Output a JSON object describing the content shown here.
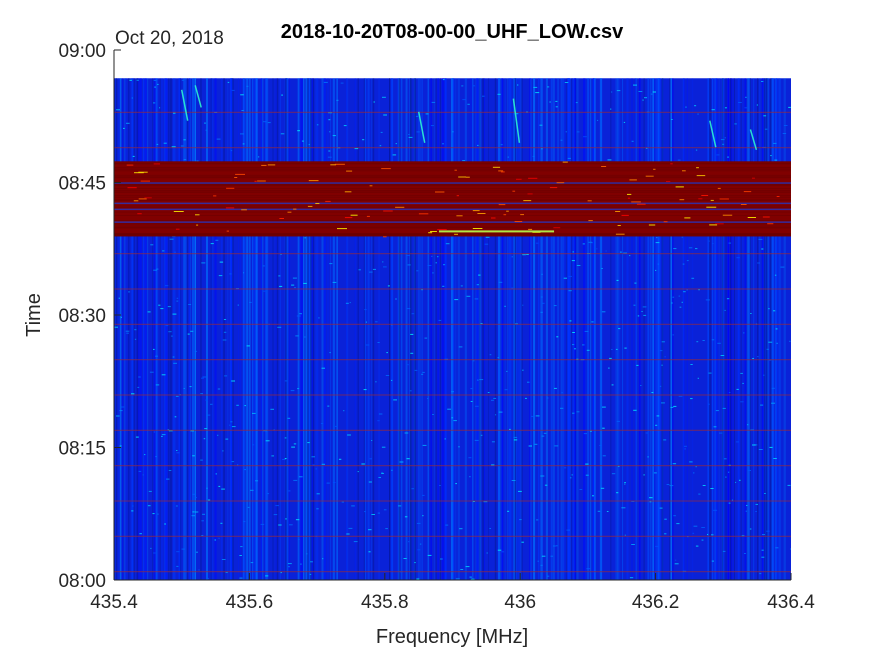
{
  "chart_data": {
    "type": "heatmap",
    "title": "2018-10-20T08-00-00_UHF_LOW.csv",
    "date_label": "Oct 20, 2018",
    "xlabel": "Frequency [MHz]",
    "ylabel": "Time",
    "xlim": [
      435.4,
      436.4
    ],
    "ylim_minutes": [
      0,
      60
    ],
    "x_ticks": [
      "435.4",
      "435.6",
      "435.8",
      "436",
      "436.2",
      "436.4"
    ],
    "x_tick_values": [
      435.4,
      435.6,
      435.8,
      436.0,
      436.2,
      436.4
    ],
    "y_ticks": [
      "08:00",
      "08:15",
      "08:30",
      "08:45",
      "09:00"
    ],
    "y_tick_values_minutes": [
      0,
      15,
      30,
      45,
      60
    ],
    "data_extent_minutes": [
      0,
      56.8
    ],
    "colormap": "jet",
    "background_level_color": "#0a22d8",
    "saturated_band_minutes": [
      38.9,
      47.4
    ],
    "saturated_color": "#800000",
    "grid": false
  }
}
